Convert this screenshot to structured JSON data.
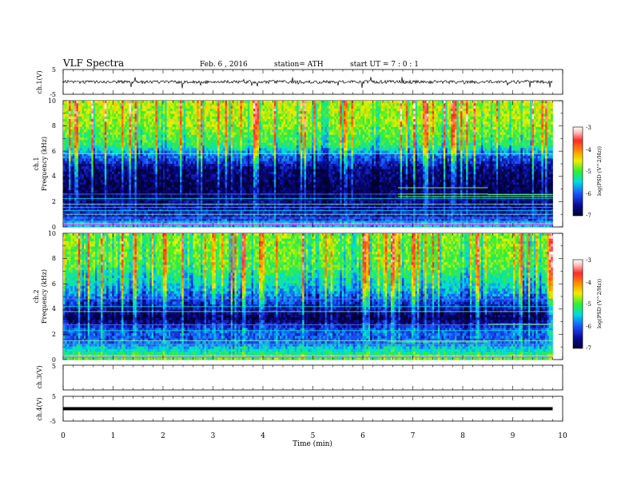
{
  "header": {
    "title": "VLF  Spectra",
    "date": "Feb. 6  , 2016",
    "station": "station= ATH",
    "start": "start  UT  =   7  : 0  : 1"
  },
  "colorbar": {
    "label": "log(PSD (V^2/Hz))",
    "ticks": [
      "-3",
      "-4",
      "-5",
      "-6",
      "-7"
    ],
    "colors": [
      "#ffffff",
      "#ff2a2a",
      "#ff9900",
      "#eeee00",
      "#33ee33",
      "#00dddd",
      "#1a55ff",
      "#0a0a99",
      "#000033"
    ]
  },
  "chart_data": [
    {
      "type": "line",
      "name": "ch1-waveform",
      "ylabel": "ch.1(V)",
      "ylim": [
        -5,
        5
      ],
      "yticks": [
        "5",
        "-5"
      ],
      "x": [
        0.0,
        0.5,
        1.0,
        1.5,
        2.0,
        2.5,
        3.0,
        3.5,
        4.0,
        4.5,
        5.0,
        5.5,
        6.0,
        6.5,
        7.0,
        7.5,
        8.0,
        8.5,
        9.0,
        9.5,
        9.8
      ],
      "values": [
        0,
        0.1,
        -0.2,
        0.1,
        0,
        -0.1,
        0.2,
        0,
        -0.1,
        0.1,
        0,
        -0.2,
        0.1,
        0,
        0.1,
        -0.1,
        0,
        0.1,
        -0.1,
        0,
        0
      ]
    },
    {
      "type": "heatmap",
      "name": "ch1-spectrogram",
      "ylabel": "ch.1",
      "ylabel2": "Frequency  (kHz)",
      "ylim": [
        0,
        10
      ],
      "yticks": [
        "10",
        "8",
        "6",
        "4",
        "2",
        "0"
      ],
      "xlim": [
        0,
        10
      ],
      "data_end": 9.8,
      "level_by_freq": [
        {
          "f": 0,
          "level": -5.6
        },
        {
          "f": 0.6,
          "level": -6.3
        },
        {
          "f": 1.8,
          "level": -6.6
        },
        {
          "f": 3.0,
          "level": -6.9
        },
        {
          "f": 4.5,
          "level": -6.7
        },
        {
          "f": 5.8,
          "level": -5.9
        },
        {
          "f": 6.5,
          "level": -5.2
        },
        {
          "f": 8.5,
          "level": -4.8
        },
        {
          "f": 10,
          "level": -4.7
        }
      ],
      "lines_khz": [
        0.3,
        0.45,
        0.7,
        1.0,
        1.3,
        1.55,
        1.8,
        2.25,
        2.6,
        5.8
      ],
      "segments": [
        {
          "x0": 6.7,
          "x1": 8.5,
          "f": 3.1
        },
        {
          "x0": 6.7,
          "x1": 8.5,
          "f": 2.6
        },
        {
          "x0": 6.7,
          "x1": 9.8,
          "f": 2.4
        },
        {
          "x0": 8.5,
          "x1": 9.8,
          "f": 2.55
        }
      ]
    },
    {
      "type": "heatmap",
      "name": "ch2-spectrogram",
      "ylabel": "ch.2",
      "ylabel2": "Frequency  (kHz)",
      "ylim": [
        0,
        10
      ],
      "yticks": [
        "10",
        "8",
        "6",
        "4",
        "2",
        "0"
      ],
      "xlim": [
        0,
        10
      ],
      "data_end": 9.8,
      "level_by_freq": [
        {
          "f": 0,
          "level": -5.0
        },
        {
          "f": 0.7,
          "level": -5.5
        },
        {
          "f": 1.5,
          "level": -6.1
        },
        {
          "f": 2.3,
          "level": -6.1
        },
        {
          "f": 3.3,
          "level": -6.9
        },
        {
          "f": 4.2,
          "level": -6.4
        },
        {
          "f": 5.5,
          "level": -5.7
        },
        {
          "f": 7.5,
          "level": -5.0
        },
        {
          "f": 10,
          "level": -4.9
        }
      ],
      "lines_khz": [
        0.3,
        0.75,
        1.2,
        1.5,
        2.3,
        2.75,
        3.8,
        4.2,
        4.8
      ],
      "segments": [
        {
          "x0": 6.5,
          "x1": 8.5,
          "f": 1.4
        },
        {
          "x0": 8.5,
          "x1": 9.8,
          "f": 2.8
        }
      ]
    },
    {
      "type": "line",
      "name": "ch3-waveform",
      "ylabel": "ch.3(V)",
      "ylim": [
        -5,
        5
      ],
      "yticks": [
        "5"
      ],
      "x": [],
      "values": []
    },
    {
      "type": "line",
      "name": "ch4-waveform",
      "ylabel": "ch.4(V)",
      "ylim": [
        -5,
        5
      ],
      "yticks": [
        "5",
        "-5"
      ],
      "x": [
        0,
        9.8
      ],
      "values": [
        0,
        0
      ]
    }
  ],
  "time_axis": {
    "xlabel": "Time  (min)",
    "ticks": [
      "0",
      "1",
      "2",
      "3",
      "4",
      "5",
      "6",
      "7",
      "8",
      "9",
      "10"
    ],
    "xlim": [
      0,
      10
    ]
  }
}
